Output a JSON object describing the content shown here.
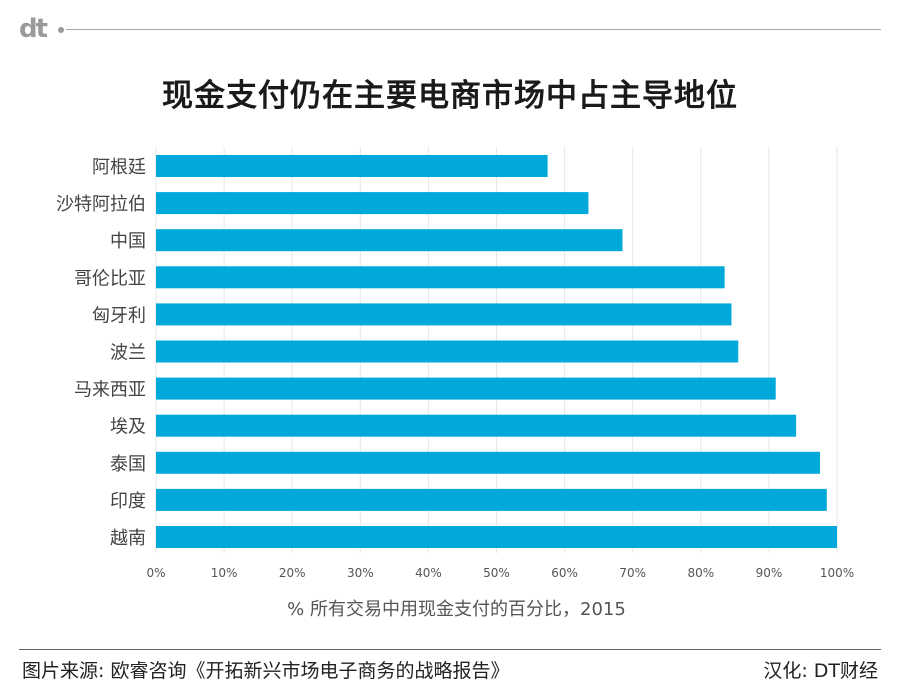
{
  "header": {
    "logo": "dt",
    "title": "现金支付仍在主要电商市场中占主导地位"
  },
  "chart_data": {
    "type": "bar",
    "orientation": "horizontal",
    "categories": [
      "阿根廷",
      "沙特阿拉伯",
      "中国",
      "哥伦比亚",
      "匈牙利",
      "波兰",
      "马来西亚",
      "埃及",
      "泰国",
      "印度",
      "越南"
    ],
    "values": [
      57.5,
      63.5,
      68.5,
      83.5,
      84.5,
      85.5,
      91,
      94,
      97.5,
      98.5,
      100
    ],
    "xlim": [
      0,
      100
    ],
    "ticks": [
      "0%",
      "10%",
      "20%",
      "30%",
      "40%",
      "50%",
      "60%",
      "70%",
      "80%",
      "90%",
      "100%"
    ],
    "xlabel": "% 所有交易中用现金支付的百分比，2015",
    "grid": "vertical",
    "bar_color": "#00a9da"
  },
  "footer": {
    "source": "图片来源: 欧睿咨询《开拓新兴市场电子商务的战略报告》",
    "credit": "汉化: DT财经"
  }
}
